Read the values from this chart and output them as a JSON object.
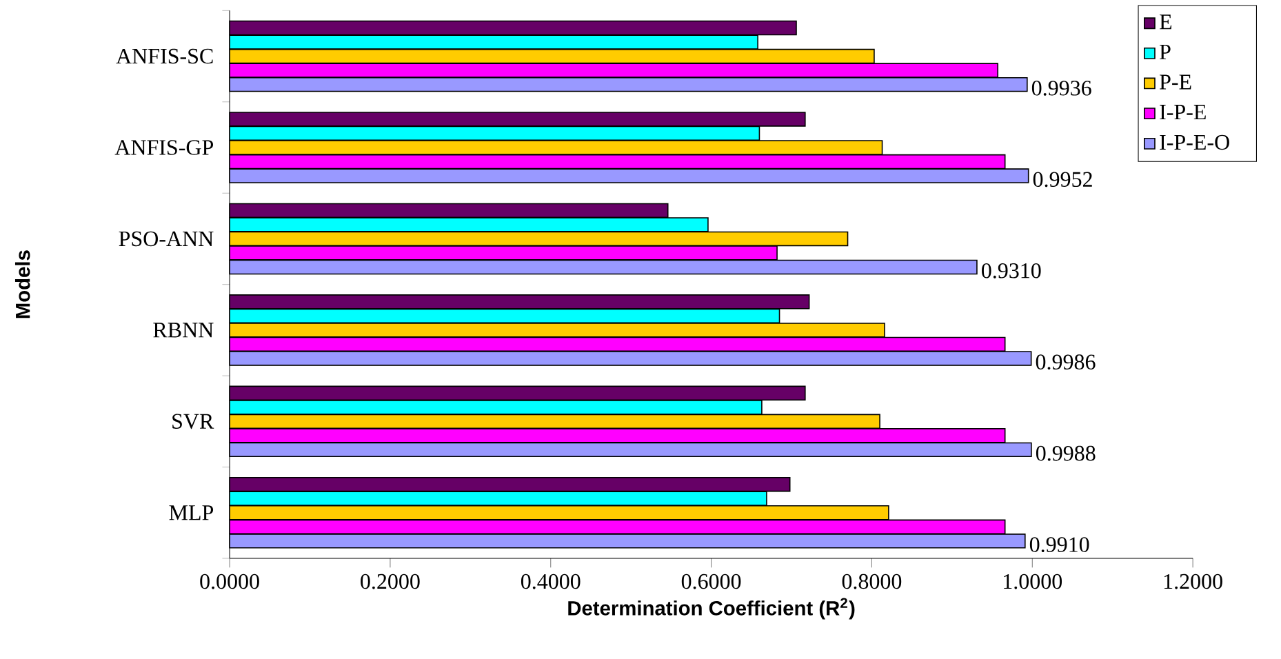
{
  "chart_data": {
    "type": "bar",
    "orientation": "horizontal",
    "xlabel": "Determination Coefficient (R$^{2}$)",
    "ylabel": "Models",
    "categories": [
      "ANFIS-SC",
      "ANFIS-GP",
      "PSO-ANN",
      "RBNN",
      "SVR",
      "MLP"
    ],
    "series": [
      {
        "name": "E",
        "color": "#660066",
        "values": [
          0.706,
          0.717,
          0.546,
          0.722,
          0.717,
          0.698
        ]
      },
      {
        "name": "P",
        "color": "#00ffff",
        "values": [
          0.658,
          0.66,
          0.596,
          0.685,
          0.663,
          0.669
        ]
      },
      {
        "name": "P-E",
        "color": "#ffcc00",
        "values": [
          0.803,
          0.813,
          0.77,
          0.816,
          0.81,
          0.821
        ]
      },
      {
        "name": "I-P-E",
        "color": "#ff00ff",
        "values": [
          0.957,
          0.966,
          0.682,
          0.966,
          0.966,
          0.966
        ]
      },
      {
        "name": "I-P-E-O",
        "color": "#9999ff",
        "values": [
          0.9936,
          0.9952,
          0.931,
          0.9986,
          0.9988,
          0.991
        ],
        "value_labels": [
          "0.9936",
          "0.9952",
          "0.9310",
          "0.9986",
          "0.9988",
          "0.9910"
        ]
      }
    ],
    "xlim": [
      0,
      1.2
    ],
    "xticks": [
      {
        "value": 0,
        "label": "0.0000"
      },
      {
        "value": 0.2,
        "label": "0.2000"
      },
      {
        "value": 0.4,
        "label": "0.4000"
      },
      {
        "value": 0.6,
        "label": "0.6000"
      },
      {
        "value": 0.8,
        "label": "0.8000"
      },
      {
        "value": 1.0,
        "label": "1.0000"
      },
      {
        "value": 1.2,
        "label": "1.2000"
      }
    ],
    "legend": "top right"
  }
}
